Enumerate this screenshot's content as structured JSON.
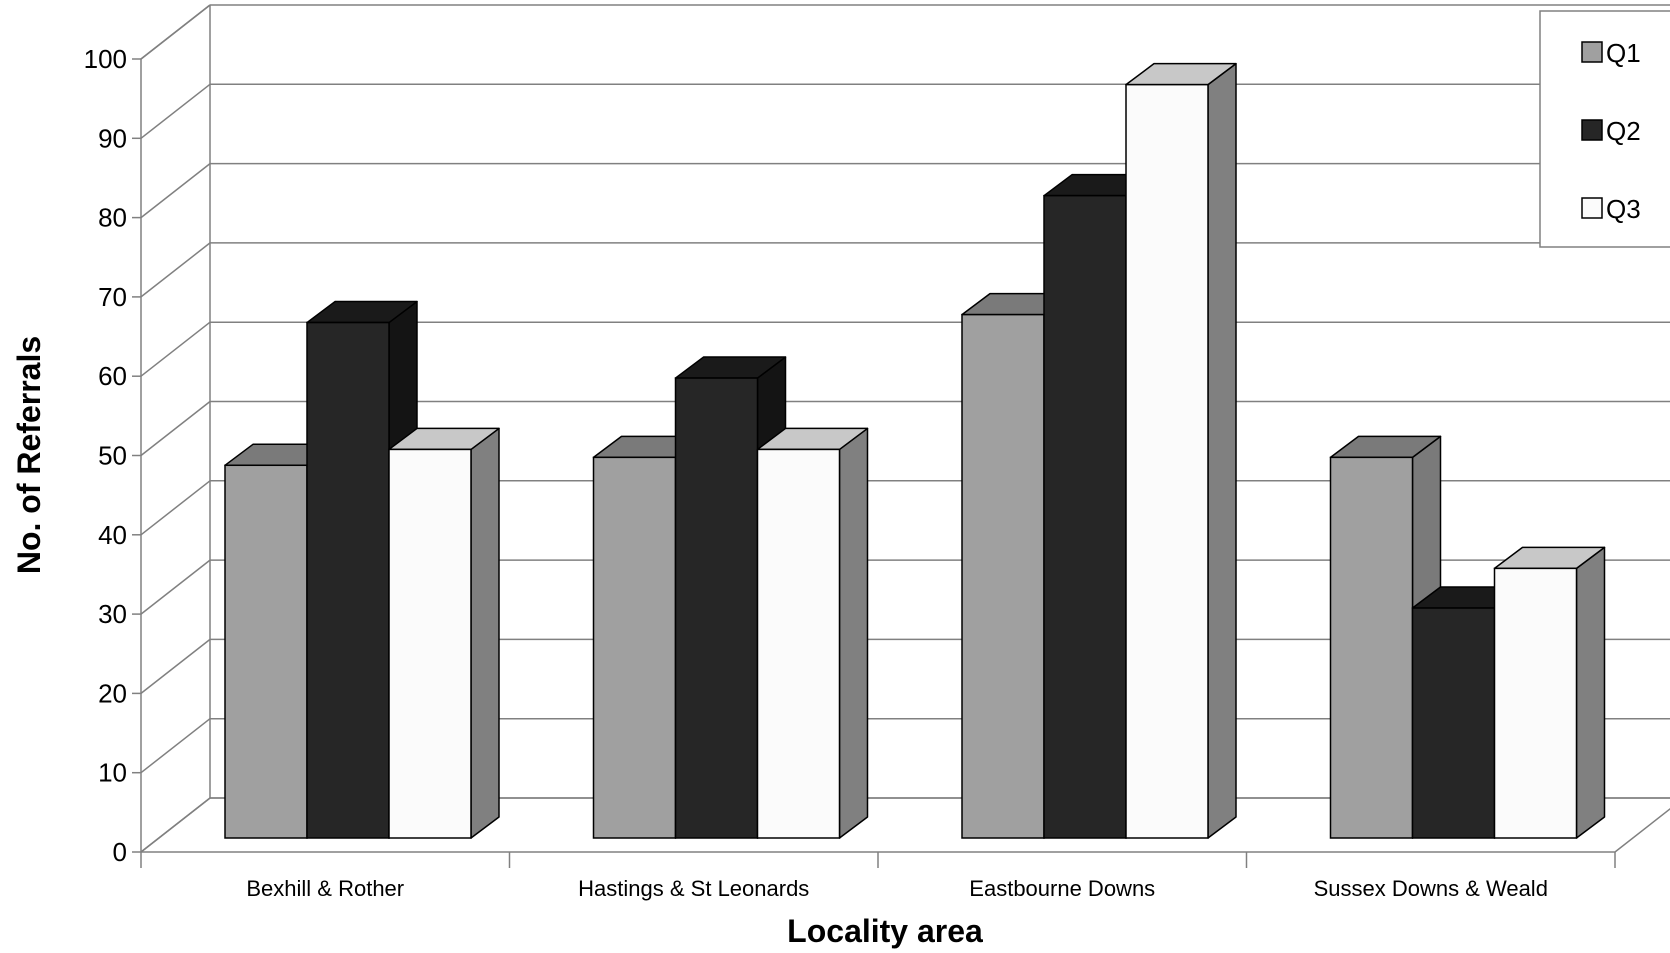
{
  "chart_data": {
    "type": "bar",
    "style": "3d-clustered-column",
    "title": "",
    "xlabel": "Locality area",
    "ylabel": "No. of Referrals",
    "ylim": [
      0,
      100
    ],
    "ytick_step": 10,
    "yticks": [
      "0",
      "10",
      "20",
      "30",
      "40",
      "50",
      "60",
      "70",
      "80",
      "90",
      "100"
    ],
    "grid": true,
    "legend_position": "top-right",
    "categories": [
      "Bexhill & Rother",
      "Hastings & St Leonards",
      "Eastbourne Downs",
      "Sussex Downs & Weald"
    ],
    "series": [
      {
        "name": "Q1",
        "values": [
          47,
          48,
          66,
          48
        ],
        "color": "#a0a0a0",
        "top": "#7a7a7a",
        "side": "#7a7a7a"
      },
      {
        "name": "Q2",
        "values": [
          65,
          58,
          81,
          29
        ],
        "color": "#262626",
        "top": "#1a1a1a",
        "side": "#141414"
      },
      {
        "name": "Q3",
        "values": [
          49,
          49,
          95,
          34
        ],
        "color": "#fbfbfb",
        "top": "#c8c8c8",
        "side": "#808080"
      }
    ]
  }
}
